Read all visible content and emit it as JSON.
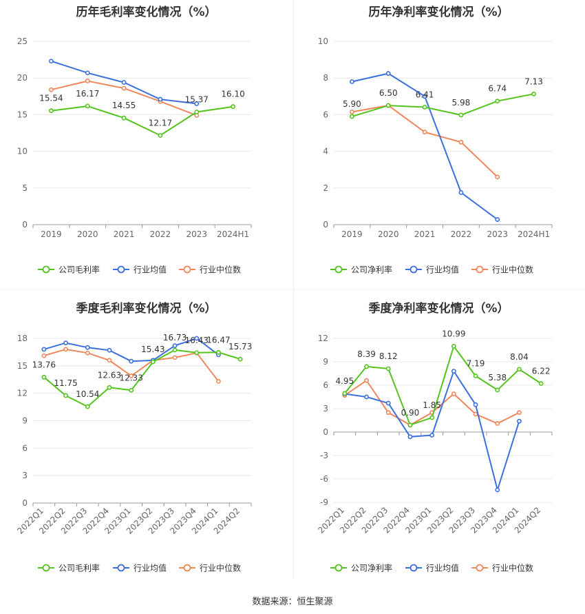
{
  "source_text": "数据来源：恒生聚源",
  "colors": {
    "company": "#52c41a",
    "avg": "#3b6fe0",
    "median": "#f0865a",
    "axis": "#666666",
    "grid": "#e8e8e8"
  },
  "chart_data": [
    {
      "type": "line",
      "title": "历年毛利率变化情况（%）",
      "categories": [
        "2019",
        "2020",
        "2021",
        "2022",
        "2023",
        "2024H1"
      ],
      "yticks": [
        0,
        5,
        10,
        15,
        20,
        25
      ],
      "ylim": [
        0,
        25
      ],
      "legend_position": "bottom",
      "series": [
        {
          "name": "公司毛利率",
          "values": [
            15.54,
            16.17,
            14.55,
            12.17,
            15.37,
            16.1
          ],
          "labels": [
            "15.54",
            "16.17",
            "14.55",
            "12.17",
            "15.37",
            "16.10"
          ]
        },
        {
          "name": "行业均值",
          "values": [
            22.3,
            20.7,
            19.4,
            17.1,
            16.5,
            null
          ]
        },
        {
          "name": "行业中位数",
          "values": [
            18.4,
            19.6,
            18.6,
            16.8,
            14.9,
            null
          ]
        }
      ]
    },
    {
      "type": "line",
      "title": "历年净利率变化情况（%）",
      "categories": [
        "2019",
        "2020",
        "2021",
        "2022",
        "2023",
        "2024H1"
      ],
      "yticks": [
        0,
        2,
        4,
        6,
        8,
        10
      ],
      "ylim": [
        0,
        10
      ],
      "legend_position": "bottom",
      "series": [
        {
          "name": "公司净利率",
          "values": [
            5.9,
            6.5,
            6.41,
            5.98,
            6.74,
            7.13
          ],
          "labels": [
            "5.90",
            "6.50",
            "6.41",
            "5.98",
            "6.74",
            "7.13"
          ]
        },
        {
          "name": "行业均值",
          "values": [
            7.8,
            8.25,
            7.0,
            1.75,
            0.28,
            null
          ]
        },
        {
          "name": "行业中位数",
          "values": [
            6.15,
            6.5,
            5.05,
            4.5,
            2.6,
            null
          ]
        }
      ]
    },
    {
      "type": "line",
      "title": "季度毛利率变化情况（%）",
      "categories": [
        "2022Q1",
        "2022Q2",
        "2022Q3",
        "2022Q4",
        "2023Q1",
        "2023Q2",
        "2023Q3",
        "2023Q4",
        "2024Q1",
        "2024Q2"
      ],
      "yticks": [
        0,
        3,
        6,
        9,
        12,
        15,
        18
      ],
      "ylim": [
        0,
        18
      ],
      "legend_position": "bottom",
      "series": [
        {
          "name": "公司毛利率",
          "values": [
            13.76,
            11.75,
            10.54,
            12.63,
            12.33,
            15.43,
            16.73,
            16.43,
            16.47,
            15.73
          ],
          "labels": [
            "13.76",
            "11.75",
            "10.54",
            "12.63",
            "12.33",
            "15.43",
            "16.73",
            "16.43",
            "16.47",
            "15.73"
          ]
        },
        {
          "name": "行业均值",
          "values": [
            16.8,
            17.5,
            17.0,
            16.7,
            15.5,
            15.6,
            17.2,
            18.0,
            16.2,
            null
          ]
        },
        {
          "name": "行业中位数",
          "values": [
            16.1,
            16.8,
            16.4,
            15.6,
            13.9,
            15.6,
            15.9,
            16.4,
            13.3,
            null
          ]
        }
      ]
    },
    {
      "type": "line",
      "title": "季度净利率变化情况（%）",
      "categories": [
        "2022Q1",
        "2022Q2",
        "2022Q3",
        "2022Q4",
        "2023Q1",
        "2023Q2",
        "2023Q3",
        "2023Q4",
        "2024Q1",
        "2024Q2"
      ],
      "yticks": [
        -9,
        -6,
        -3,
        0,
        3,
        6,
        9,
        12
      ],
      "ylim": [
        -9,
        12
      ],
      "legend_position": "bottom",
      "series": [
        {
          "name": "公司净利率",
          "values": [
            4.95,
            8.39,
            8.12,
            0.9,
            1.85,
            10.99,
            7.19,
            5.38,
            8.04,
            6.22
          ],
          "labels": [
            "4.95",
            "8.39",
            "8.12",
            "0.90",
            "1.85",
            "10.99",
            "7.19",
            "5.38",
            "8.04",
            "6.22"
          ]
        },
        {
          "name": "行业均值",
          "values": [
            4.9,
            4.5,
            3.7,
            -0.6,
            -0.4,
            7.8,
            3.5,
            -7.4,
            1.4,
            null
          ]
        },
        {
          "name": "行业中位数",
          "values": [
            4.7,
            6.6,
            2.5,
            0.9,
            2.5,
            4.9,
            2.3,
            1.1,
            2.5,
            null
          ]
        }
      ]
    }
  ]
}
